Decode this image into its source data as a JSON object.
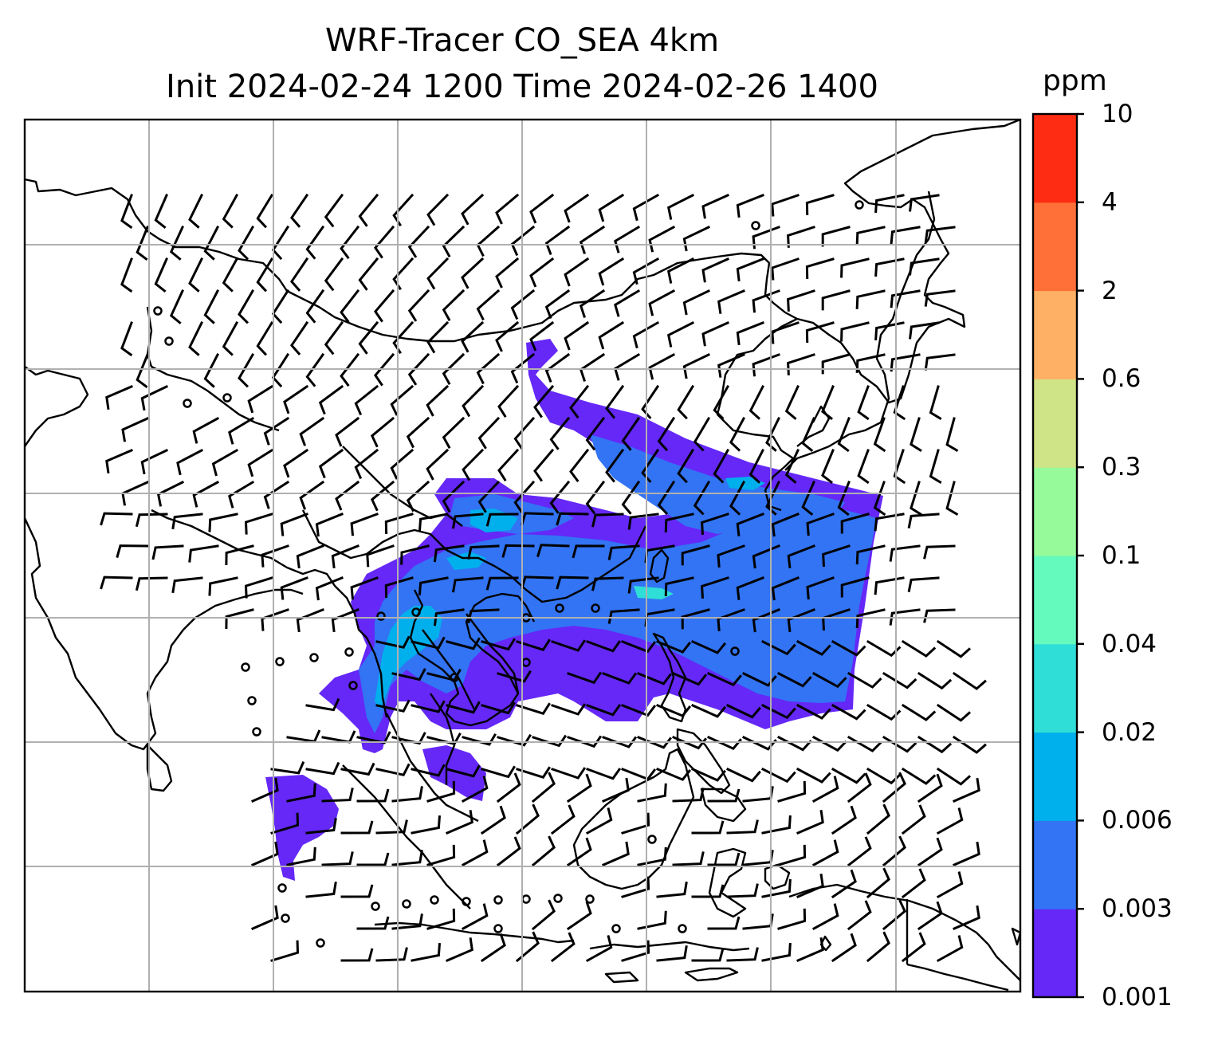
{
  "title_line1": "WRF-Tracer CO_SEA 4km",
  "title_line2": "Init 2024-02-24 1200 Time 2024-02-26 1400",
  "colorbar": {
    "units": "ppm",
    "levels": [
      "0.001",
      "0.003",
      "0.006",
      "0.02",
      "0.04",
      "0.1",
      "0.3",
      "0.6",
      "2",
      "4",
      "10"
    ],
    "colors": [
      "#6528f7",
      "#3274f4",
      "#00b0ec",
      "#2fded6",
      "#65fabd",
      "#97fa9a",
      "#cfe387",
      "#feb064",
      "#fe7037",
      "#fd2c13"
    ]
  },
  "map": {
    "land_outline_color": "#000000",
    "gridline_color": "#b0b0b0",
    "plume_colors": {
      "outer": "#6528f7",
      "mid": "#3274f4",
      "core": "#00b0ec",
      "peak": "#2fded6"
    },
    "layers": [
      "filled-contour-co-tracer",
      "wind-barbs",
      "coastlines",
      "gridlines"
    ]
  }
}
